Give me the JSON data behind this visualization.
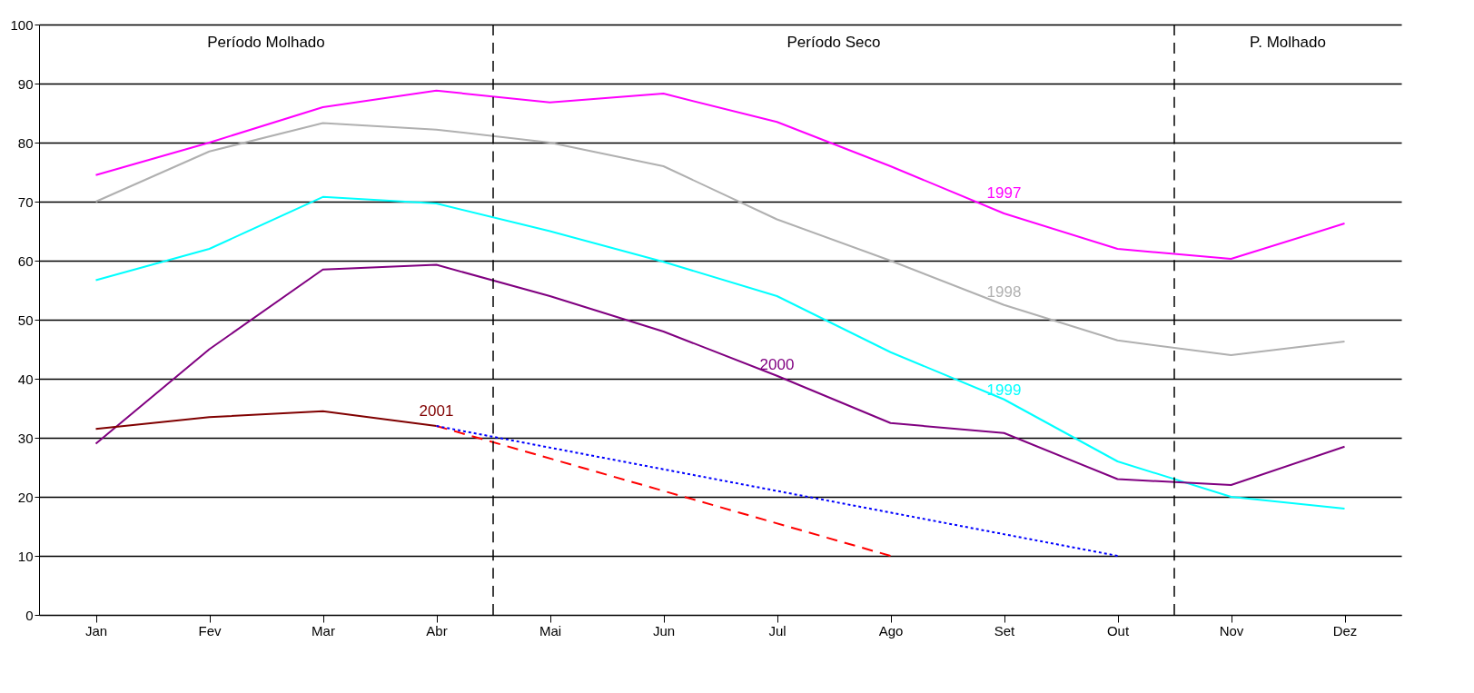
{
  "chart_data": {
    "type": "line",
    "categories": [
      "Jan",
      "Fev",
      "Mar",
      "Abr",
      "Mai",
      "Jun",
      "Jul",
      "Ago",
      "Set",
      "Out",
      "Nov",
      "Dez"
    ],
    "series": [
      {
        "name": "1997",
        "color": "#ff00ff",
        "values": [
          74.5,
          80,
          86,
          88.8,
          86.8,
          88.3,
          83.5,
          76,
          68,
          62,
          60.3,
          66.3
        ]
      },
      {
        "name": "1998",
        "color": "#b0b0b0",
        "values": [
          70,
          78.5,
          83.3,
          82.2,
          80,
          76,
          67,
          60,
          52.5,
          46.5,
          44,
          46.3
        ]
      },
      {
        "name": "1999",
        "color": "#00ffff",
        "values": [
          56.7,
          62,
          70.8,
          69.7,
          65,
          59.8,
          54,
          44.5,
          36.5,
          26,
          20,
          18
        ]
      },
      {
        "name": "2000",
        "color": "#800080",
        "values": [
          29,
          45,
          58.5,
          59.3,
          54,
          48,
          40.5,
          32.5,
          30.8,
          23,
          22,
          28.5
        ]
      },
      {
        "name": "2001",
        "color": "#800000",
        "values": [
          31.5,
          33.5,
          34.5,
          32,
          null,
          null,
          null,
          null,
          null,
          null,
          null,
          null
        ]
      },
      {
        "type": "line",
        "color": "#ff0000",
        "line_style": "dashed",
        "x": [
          "Abr",
          "Ago"
        ],
        "values": [
          32,
          10
        ]
      },
      {
        "type": "line",
        "color": "#0000ff",
        "line_style": "dotted",
        "x": [
          "Abr",
          "Out"
        ],
        "values": [
          32,
          10
        ]
      }
    ],
    "annotations": [
      "Período Molhado",
      "Período Seco",
      "P. Molhado"
    ],
    "ylim": [
      0,
      100
    ],
    "yticks": [
      0,
      10,
      20,
      30,
      40,
      50,
      60,
      70,
      80,
      90,
      100
    ],
    "grid": "y",
    "marker": "none"
  }
}
